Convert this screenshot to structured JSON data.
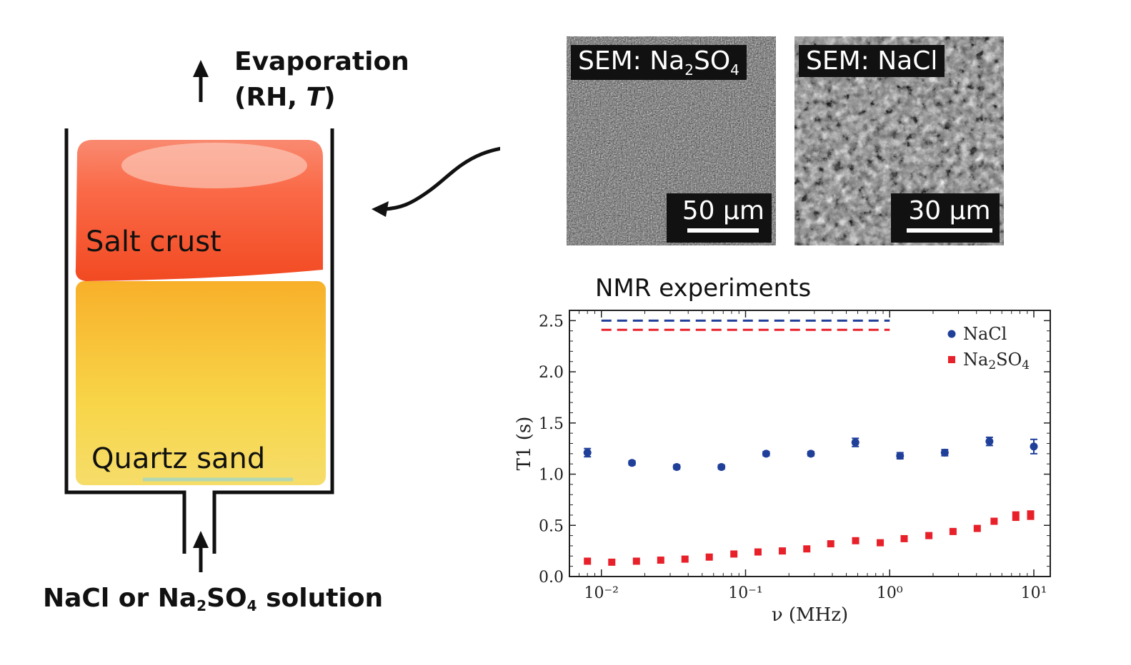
{
  "evaporation": {
    "line1": "Evaporation",
    "line2_open": "(RH, ",
    "line2_T": "T",
    "line2_close": ")"
  },
  "zones": {
    "crust": "Salt crust",
    "sand": "Quartz sand"
  },
  "solution": {
    "pre": "NaCl or Na",
    "sub1": "2",
    "mid": "SO",
    "sub2": "4",
    "post": " solution"
  },
  "sem_left": {
    "title_pre": "SEM: Na",
    "title_sub": "2",
    "title_mid": "SO",
    "title_sub2": "4",
    "scale": "50 µm"
  },
  "sem_right": {
    "title": "SEM: NaCl",
    "scale": "30 µm"
  },
  "nmr_title": "NMR experiments",
  "colors": {
    "nacl": "#1f3f99",
    "na2so4": "#e8202a",
    "crust": "#f55a32",
    "sand": "#f7c43a"
  },
  "chart_data": {
    "type": "scatter",
    "x_scale": "log",
    "xlabel": "ν (MHz)",
    "ylabel": "T1 (s)",
    "xlim": [
      0.006,
      13
    ],
    "ylim": [
      0.0,
      2.6
    ],
    "x_tick_labels": [
      "10⁻²",
      "10⁻¹",
      "10⁰",
      "10¹"
    ],
    "y_tick_labels": [
      "0.0",
      "0.5",
      "1.0",
      "1.5",
      "2.0",
      "2.5"
    ],
    "legend_position": "top-right",
    "series": [
      {
        "name": "NaCl",
        "color": "#1f3f99",
        "marker": "circle",
        "x": [
          0.008,
          0.0163,
          0.0333,
          0.068,
          0.139,
          0.284,
          0.578,
          1.18,
          2.41,
          4.92,
          10.0
        ],
        "y": [
          1.21,
          1.11,
          1.07,
          1.07,
          1.2,
          1.2,
          1.31,
          1.18,
          1.21,
          1.32,
          1.27
        ],
        "err": [
          0.04,
          0.02,
          0.02,
          0.02,
          0.02,
          0.02,
          0.04,
          0.03,
          0.03,
          0.04,
          0.07
        ]
      },
      {
        "name": "Na2SO4",
        "color": "#e8202a",
        "marker": "square",
        "x": [
          0.008,
          0.0118,
          0.0175,
          0.0258,
          0.038,
          0.056,
          0.083,
          0.122,
          0.18,
          0.266,
          0.39,
          0.58,
          0.86,
          1.26,
          1.87,
          2.75,
          4.05,
          5.3,
          7.5,
          9.5
        ],
        "y": [
          0.15,
          0.14,
          0.15,
          0.16,
          0.17,
          0.19,
          0.22,
          0.24,
          0.25,
          0.27,
          0.32,
          0.35,
          0.33,
          0.37,
          0.4,
          0.44,
          0.47,
          0.54,
          0.59,
          0.6
        ],
        "err": [
          0,
          0,
          0,
          0,
          0,
          0,
          0,
          0,
          0,
          0,
          0,
          0,
          0,
          0,
          0,
          0,
          0,
          0,
          0.04,
          0.04
        ]
      }
    ],
    "reference_lines": [
      {
        "series": "NaCl",
        "y": 2.5,
        "x_range": [
          0.01,
          1.0
        ],
        "style": "dashed"
      },
      {
        "series": "Na2SO4",
        "y": 2.41,
        "x_range": [
          0.01,
          1.0
        ],
        "style": "dashed"
      }
    ]
  }
}
